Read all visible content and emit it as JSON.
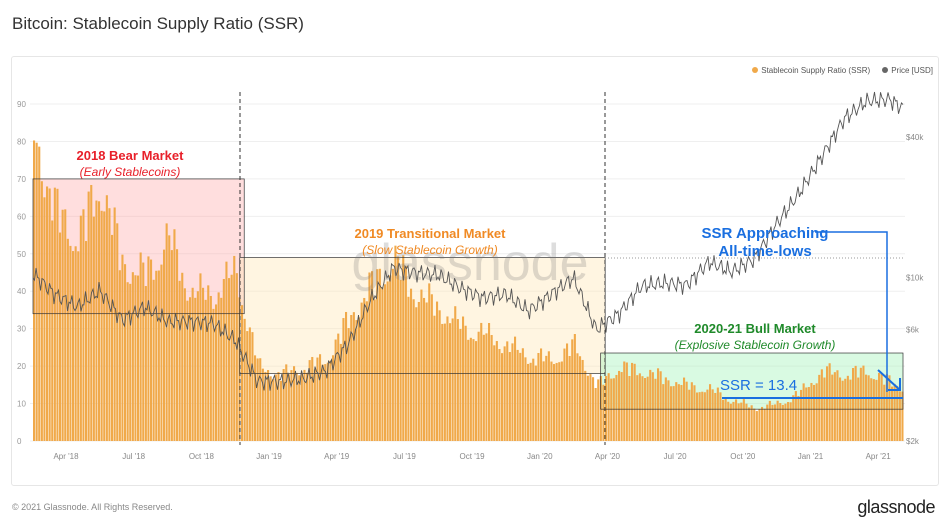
{
  "title": "Bitcoin: Stablecoin Supply Ratio (SSR)",
  "legend": [
    {
      "label": "Stablecoin Supply Ratio (SSR)",
      "color": "#f0a94a"
    },
    {
      "label": "Price [USD]",
      "color": "#666666"
    }
  ],
  "footer": "© 2021 Glassnode. All Rights Reserved.",
  "logo": "glassnode",
  "watermark": "glassnode",
  "annotations": {
    "bear": {
      "title": "2018 Bear Market",
      "sub": "(Early Stablecoins)",
      "color": "#e8202a"
    },
    "transition": {
      "title": "2019 Transitional Market",
      "sub": "(Slow Stablecoin Growth)",
      "color": "#f08a24"
    },
    "bull": {
      "title": "2020-21 Bull Market",
      "sub": "(Explosive Stablecoin Growth)",
      "color": "#1f8a2a"
    },
    "approach": {
      "title": "SSR Approaching",
      "sub": "All-time-lows",
      "color": "#1a6fe0"
    },
    "ssr": {
      "label": "SSR = 13.4",
      "color": "#1a6fe0"
    }
  },
  "chart_data": {
    "type": "bar+line",
    "title": "Bitcoin: Stablecoin Supply Ratio (SSR)",
    "x_ticks": [
      "Apr '18",
      "Jul '18",
      "Oct '18",
      "Jan '19",
      "Apr '19",
      "Jul '19",
      "Oct '19",
      "Jan '20",
      "Apr '20",
      "Jul '20",
      "Oct '20",
      "Jan '21",
      "Apr '21"
    ],
    "y_left_ticks": [
      0,
      10,
      20,
      30,
      40,
      50,
      60,
      70,
      80,
      90
    ],
    "y_left_range": [
      0,
      90
    ],
    "y_right_ticks": [
      "$2k",
      "$6k",
      "$10k",
      "$40k"
    ],
    "y_right_values": [
      2000,
      6000,
      10000,
      40000
    ],
    "months": [
      "2018-02",
      "2018-03",
      "2018-04",
      "2018-05",
      "2018-06",
      "2018-07",
      "2018-08",
      "2018-09",
      "2018-10",
      "2018-11",
      "2018-12",
      "2019-01",
      "2019-02",
      "2019-03",
      "2019-04",
      "2019-05",
      "2019-06",
      "2019-07",
      "2019-08",
      "2019-09",
      "2019-10",
      "2019-11",
      "2019-12",
      "2020-01",
      "2020-02",
      "2020-03",
      "2020-04",
      "2020-05",
      "2020-06",
      "2020-07",
      "2020-08",
      "2020-09",
      "2020-10",
      "2020-11",
      "2020-12",
      "2021-01",
      "2021-02",
      "2021-03",
      "2021-04",
      "2021-05"
    ],
    "series": [
      {
        "name": "Stablecoin Supply Ratio (SSR)",
        "values": [
          85,
          62,
          55,
          70,
          48,
          45,
          55,
          40,
          40,
          46,
          20,
          18,
          20,
          22,
          33,
          42,
          49,
          40,
          36,
          31,
          29,
          26,
          23,
          22,
          26,
          15,
          20,
          19,
          17,
          15,
          14,
          11,
          9,
          10,
          13,
          19,
          18,
          19,
          16,
          13.4
        ]
      },
      {
        "name": "Price [USD]",
        "values": [
          10500,
          8500,
          7500,
          8800,
          6600,
          7500,
          6500,
          6500,
          6400,
          5400,
          3600,
          3600,
          3700,
          4000,
          5200,
          8000,
          11000,
          10500,
          10300,
          9000,
          8200,
          8500,
          7200,
          8500,
          10000,
          6000,
          7000,
          9200,
          9500,
          9300,
          11700,
          10600,
          12000,
          17000,
          23000,
          33000,
          48000,
          57000,
          58000,
          50000
        ]
      }
    ],
    "regions": [
      {
        "name": "2018 Bear Market",
        "from": "2018-02",
        "to": "2018-11",
        "ssr_range": [
          34,
          70
        ]
      },
      {
        "name": "2019 Transitional Market",
        "from": "2018-11",
        "to": "2020-03",
        "ssr_range": [
          18,
          49
        ]
      },
      {
        "name": "2020-21 Bull Market",
        "from": "2020-03",
        "to": "2021-05",
        "ssr_range": [
          8.5,
          23.5
        ]
      }
    ],
    "ssr_current": 13.4
  }
}
